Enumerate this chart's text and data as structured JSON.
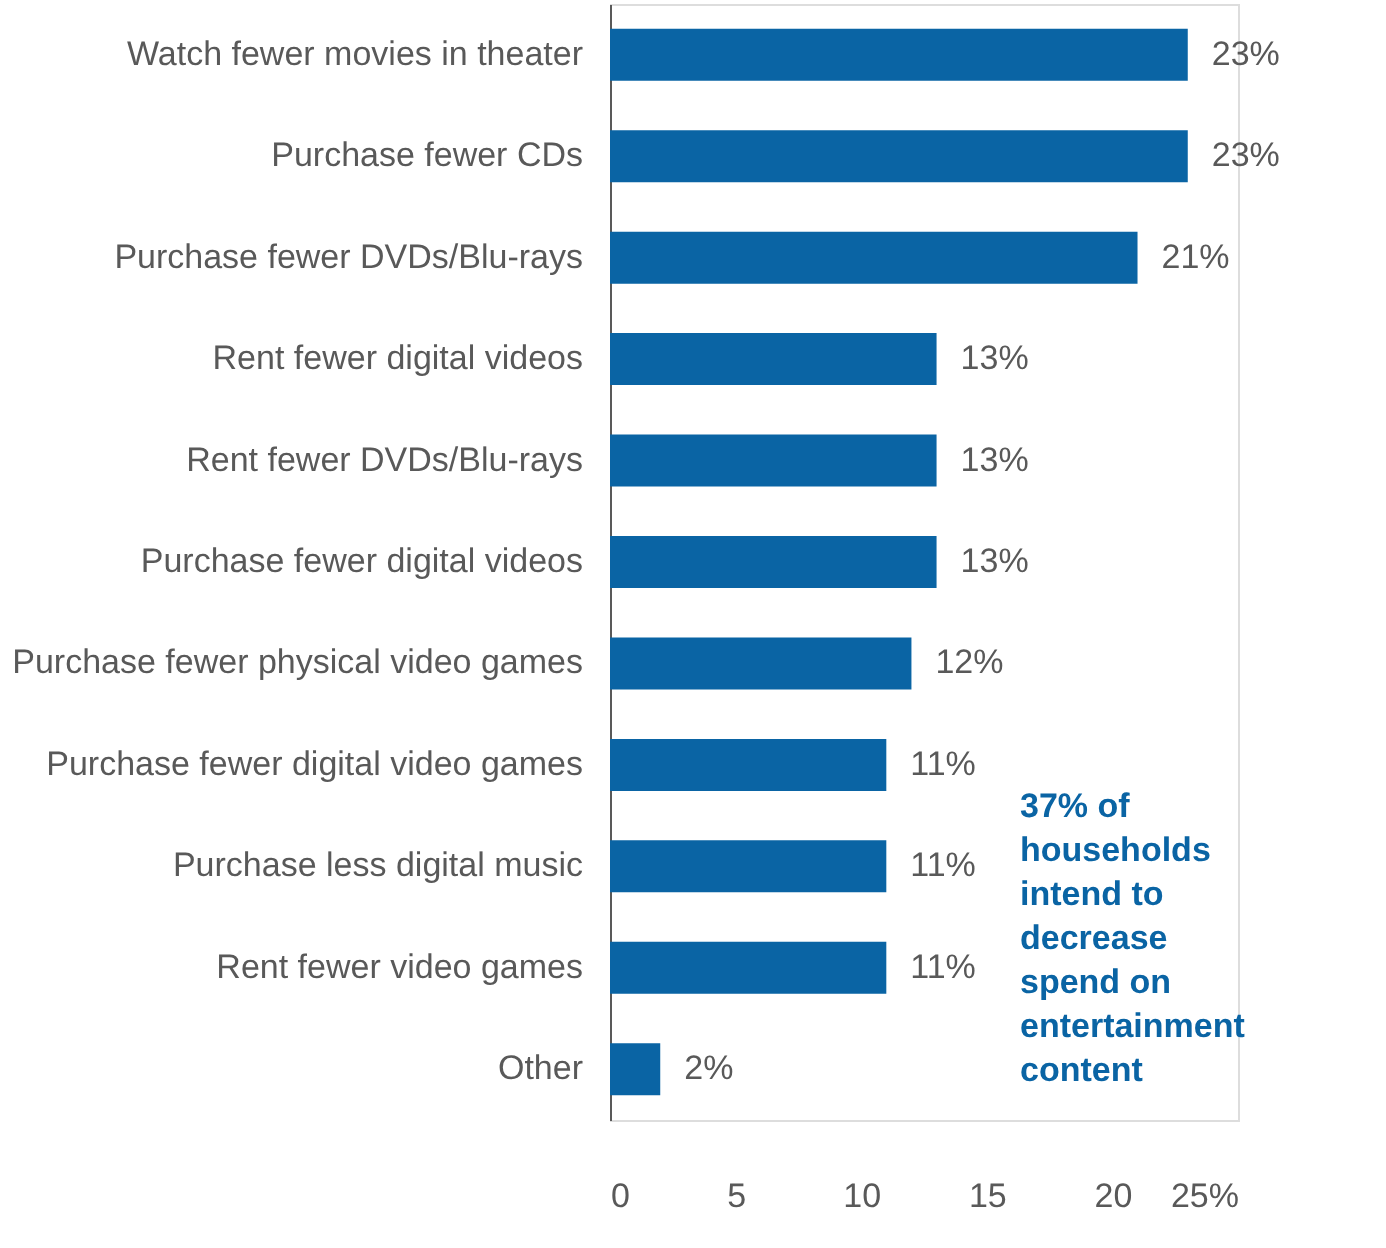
{
  "chart_data": {
    "type": "bar",
    "orientation": "horizontal",
    "categories": [
      "Watch fewer movies in theater",
      "Purchase fewer CDs",
      "Purchase fewer DVDs/Blu-rays",
      "Rent fewer digital videos",
      "Rent fewer DVDs/Blu-rays",
      "Purchase fewer digital videos",
      "Purchase fewer physical video games",
      "Purchase fewer digital video games",
      "Purchase less digital music",
      "Rent fewer video games",
      "Other"
    ],
    "values": [
      23,
      23,
      21,
      13,
      13,
      13,
      12,
      11,
      11,
      11,
      2
    ],
    "value_labels": [
      "23%",
      "23%",
      "21%",
      "13%",
      "13%",
      "13%",
      "12%",
      "11%",
      "11%",
      "11%",
      "2%"
    ],
    "color": "#0a64a4",
    "xlim": [
      0,
      25
    ],
    "xticks": [
      0,
      5,
      10,
      15,
      20,
      {
        "value": 25,
        "label": "25%"
      }
    ],
    "grid": false,
    "annotations": [
      "37% of households intend to decrease spend on entertainment content"
    ]
  }
}
